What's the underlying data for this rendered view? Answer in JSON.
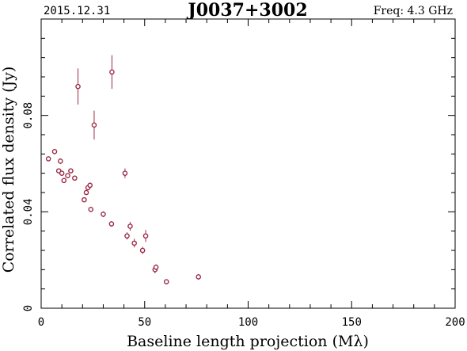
{
  "header": {
    "date": "2015.12.31",
    "source": "J0037+3002",
    "freq": "Freq: 4.3 GHz"
  },
  "colors": {
    "accent": "#9b2b48",
    "axis": "#000000"
  },
  "chart_data": {
    "type": "scatter",
    "title": "J0037+3002",
    "xlabel": "Baseline length projection (Mλ)",
    "ylabel": "Correlated flux density (Jy)",
    "xlim": [
      0,
      200
    ],
    "ylim": [
      0,
      0.12
    ],
    "xticks": [
      0,
      50,
      100,
      150,
      200
    ],
    "xtick_labels": [
      "0",
      "50",
      "100",
      "150",
      "200"
    ],
    "yticks": [
      0,
      0.04,
      0.08
    ],
    "ytick_labels": [
      "0",
      "0.04",
      "0.08"
    ],
    "grid": false,
    "points": [
      {
        "x": 3.5,
        "y": 0.062,
        "err": 0.0008
      },
      {
        "x": 6.5,
        "y": 0.065,
        "err": 0.001
      },
      {
        "x": 8.5,
        "y": 0.057,
        "err": 0.0009
      },
      {
        "x": 9.3,
        "y": 0.061,
        "err": 0.0012
      },
      {
        "x": 10.0,
        "y": 0.056,
        "err": 0.0008
      },
      {
        "x": 11.0,
        "y": 0.053,
        "err": 0.001
      },
      {
        "x": 12.8,
        "y": 0.055,
        "err": 0.0009
      },
      {
        "x": 14.3,
        "y": 0.057,
        "err": 0.0008
      },
      {
        "x": 16.2,
        "y": 0.054,
        "err": 0.001
      },
      {
        "x": 17.8,
        "y": 0.092,
        "err": 0.0075
      },
      {
        "x": 20.8,
        "y": 0.045,
        "err": 0.001
      },
      {
        "x": 21.8,
        "y": 0.048,
        "err": 0.001
      },
      {
        "x": 22.6,
        "y": 0.05,
        "err": 0.0009
      },
      {
        "x": 23.6,
        "y": 0.051,
        "err": 0.0012
      },
      {
        "x": 24.0,
        "y": 0.041,
        "err": 0.001
      },
      {
        "x": 25.6,
        "y": 0.076,
        "err": 0.006
      },
      {
        "x": 30.0,
        "y": 0.039,
        "err": 0.0012
      },
      {
        "x": 34.0,
        "y": 0.035,
        "err": 0.0012
      },
      {
        "x": 34.2,
        "y": 0.098,
        "err": 0.007
      },
      {
        "x": 40.5,
        "y": 0.056,
        "err": 0.002
      },
      {
        "x": 41.5,
        "y": 0.03,
        "err": 0.0015
      },
      {
        "x": 43.0,
        "y": 0.034,
        "err": 0.0018
      },
      {
        "x": 45.0,
        "y": 0.027,
        "err": 0.0018
      },
      {
        "x": 49.0,
        "y": 0.024,
        "err": 0.0015
      },
      {
        "x": 50.5,
        "y": 0.03,
        "err": 0.0025
      },
      {
        "x": 55.0,
        "y": 0.016,
        "err": 0.0015
      },
      {
        "x": 55.5,
        "y": 0.017,
        "err": 0.0012
      },
      {
        "x": 60.5,
        "y": 0.011,
        "err": 0.001
      },
      {
        "x": 76.0,
        "y": 0.013,
        "err": 0.0012
      }
    ]
  }
}
